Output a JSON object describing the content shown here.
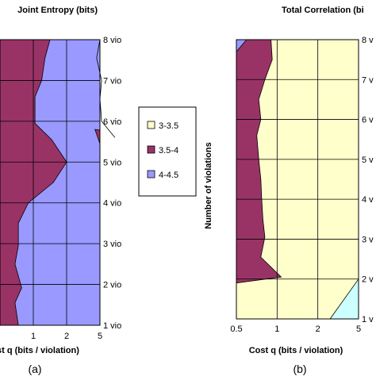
{
  "chart_data": [
    {
      "type": "area",
      "title": "Joint Entropy (bits)",
      "xlabel": "st q (bits / violation)",
      "ylabel": "",
      "x_tick_labels": [
        "1",
        "2",
        "5"
      ],
      "y_tick_labels": [
        "1 vio",
        "2 vio",
        "3 vio",
        "4 vio",
        "5 vio",
        "6 vio",
        "7 vio",
        "8 vio"
      ],
      "panel_label": "(a)",
      "region_colors": {
        "3-3.5": "#ffffcc",
        "3.5-4": "#993366",
        "4-4.5": "#9999ff"
      },
      "boundary_3_5_4": [
        [
          0.55,
          1.0
        ],
        [
          0.45,
          1.55
        ],
        [
          0.65,
          1.92
        ],
        [
          0.45,
          2.5
        ],
        [
          0.55,
          2.95
        ],
        [
          0.55,
          3.5
        ],
        [
          0.85,
          4.0
        ],
        [
          1.6,
          4.5
        ],
        [
          2.0,
          5.0
        ],
        [
          1.55,
          5.55
        ],
        [
          1.05,
          5.95
        ],
        [
          1.05,
          6.6
        ],
        [
          1.25,
          7.0
        ],
        [
          1.35,
          7.55
        ],
        [
          1.5,
          8.0
        ]
      ],
      "boundary_4_4_5_right": [
        [
          3.0,
          8.0
        ],
        [
          2.9,
          7.55
        ],
        [
          3.05,
          7.0
        ],
        [
          3.0,
          6.55
        ],
        [
          3.05,
          6.0
        ],
        [
          3.3,
          5.75
        ],
        [
          3.45,
          5.6
        ]
      ]
    },
    {
      "type": "area",
      "title": "Total Correlation (bi",
      "xlabel": "Cost q (bits / violation)",
      "ylabel": "Number of violations",
      "x_tick_labels": [
        "0.5",
        "1",
        "2",
        "5"
      ],
      "y_tick_labels": [
        "1 v",
        "2 v",
        "3 v",
        "4 v",
        "5 v",
        "6 v",
        "7 v",
        "8 v"
      ],
      "panel_label": "(b)",
      "boundary_3_5_4": [
        [
          0.0,
          1.9
        ],
        [
          1.1,
          2.05
        ],
        [
          0.6,
          2.55
        ],
        [
          0.7,
          3.05
        ],
        [
          0.65,
          3.5
        ],
        [
          0.62,
          4.05
        ],
        [
          0.6,
          4.5
        ],
        [
          0.55,
          5.0
        ],
        [
          0.5,
          5.6
        ],
        [
          0.6,
          6.0
        ],
        [
          0.55,
          6.5
        ],
        [
          0.7,
          7.0
        ],
        [
          0.88,
          7.5
        ],
        [
          0.85,
          8.0
        ],
        [
          0.0,
          8.0
        ]
      ],
      "blue_regions": [
        [
          [
            0.0,
            8.0
          ],
          [
            0.25,
            8.0
          ],
          [
            0.0,
            7.7
          ]
        ],
        [
          [
            2.3,
            1.0
          ],
          [
            3.0,
            1.0
          ],
          [
            3.0,
            2.0
          ]
        ]
      ]
    }
  ],
  "legend": {
    "entries": [
      {
        "label": "3-3.5",
        "color": "#ffffcc"
      },
      {
        "label": "3.5-4",
        "color": "#993366"
      },
      {
        "label": "4-4.5",
        "color": "#9999ff"
      }
    ]
  },
  "extra_colors": {
    "light_blue": "#ccffff",
    "grid": "#000000"
  }
}
